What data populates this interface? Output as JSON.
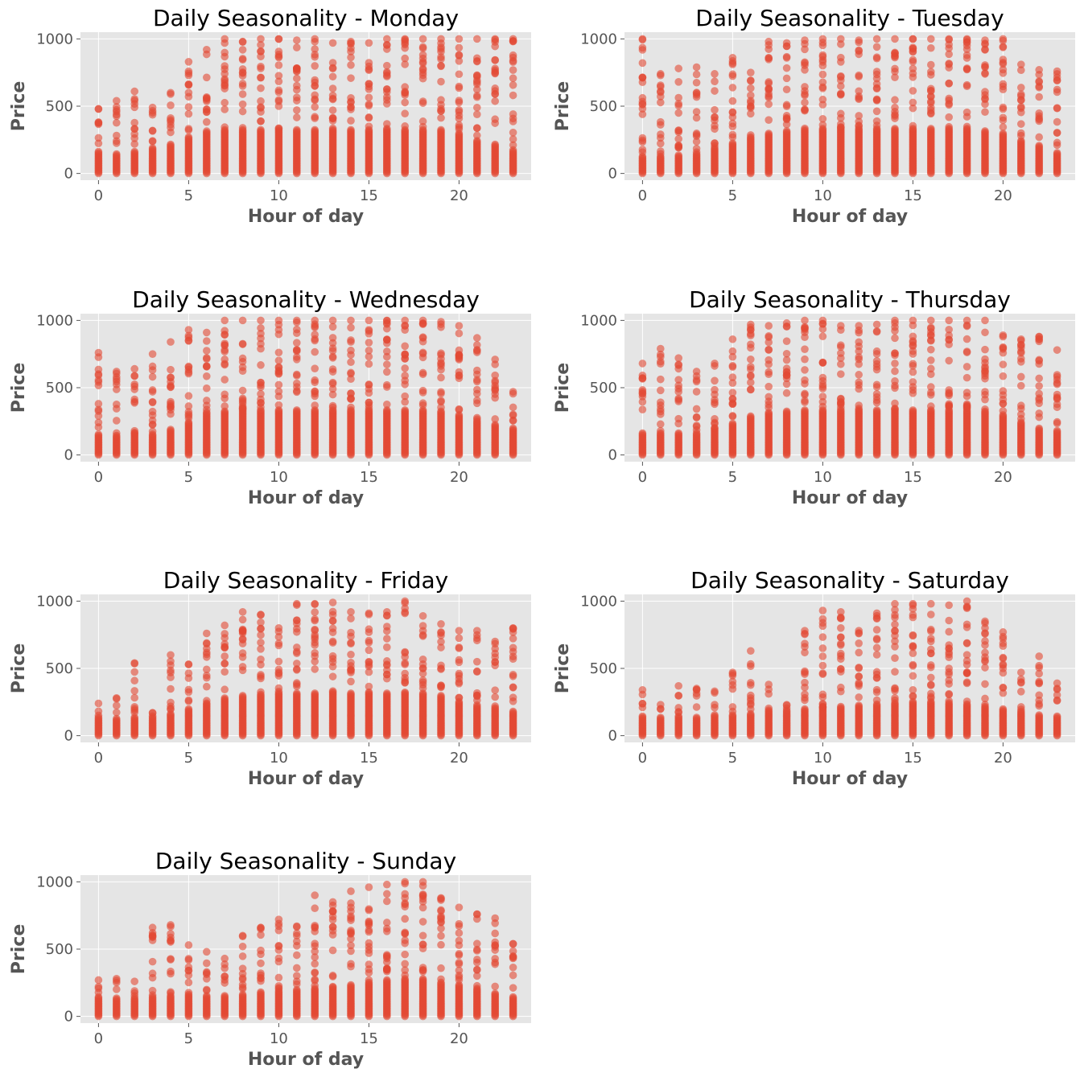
{
  "figure": {
    "background": "#ffffff",
    "plot_background": "#e5e5e5",
    "grid_color": "#ffffff",
    "marker_color": "#e24a33",
    "text_color": "#555555"
  },
  "chart_data": [
    {
      "type": "scatter",
      "title": "Daily Seasonality - Monday",
      "xlabel": "Hour of day",
      "ylabel": "Price",
      "xlim": [
        -1,
        24
      ],
      "ylim": [
        -50,
        1050
      ],
      "xticks": [
        0,
        5,
        10,
        15,
        20
      ],
      "yticks": [
        0,
        500,
        1000
      ],
      "grid": true,
      "marker_alpha": 0.6,
      "series": [
        {
          "x_hours": [
            0,
            1,
            2,
            3,
            4,
            5,
            6,
            7,
            8,
            9,
            10,
            11,
            12,
            13,
            14,
            15,
            16,
            17,
            18,
            19,
            20,
            21,
            22,
            23
          ],
          "max_price": [
            480,
            540,
            610,
            490,
            600,
            830,
            920,
            1000,
            980,
            1000,
            1000,
            990,
            1000,
            970,
            980,
            970,
            1000,
            1000,
            1000,
            1000,
            1000,
            1000,
            1000,
            1000
          ],
          "dense_upto": [
            170,
            150,
            170,
            190,
            220,
            270,
            300,
            330,
            330,
            330,
            330,
            330,
            330,
            330,
            330,
            330,
            340,
            330,
            330,
            330,
            300,
            250,
            220,
            170
          ]
        }
      ]
    },
    {
      "type": "scatter",
      "title": "Daily Seasonality - Tuesday",
      "xlabel": "Hour of day",
      "ylabel": "Price",
      "xlim": [
        -1,
        24
      ],
      "ylim": [
        -50,
        1050
      ],
      "xticks": [
        0,
        5,
        10,
        15,
        20
      ],
      "yticks": [
        0,
        500,
        1000
      ],
      "grid": true,
      "marker_alpha": 0.6,
      "series": [
        {
          "x_hours": [
            0,
            1,
            2,
            3,
            4,
            5,
            6,
            7,
            8,
            9,
            10,
            11,
            12,
            13,
            14,
            15,
            16,
            17,
            18,
            19,
            20,
            21,
            22,
            23
          ],
          "max_price": [
            1000,
            740,
            780,
            790,
            740,
            860,
            750,
            980,
            970,
            990,
            1000,
            1000,
            990,
            1000,
            1000,
            1000,
            1000,
            1000,
            1000,
            990,
            1000,
            810,
            770,
            760
          ],
          "dense_upto": [
            130,
            130,
            140,
            150,
            180,
            230,
            270,
            300,
            320,
            330,
            340,
            340,
            340,
            340,
            340,
            340,
            340,
            340,
            340,
            320,
            300,
            250,
            210,
            160
          ]
        }
      ]
    },
    {
      "type": "scatter",
      "title": "Daily Seasonality - Wednesday",
      "xlabel": "Hour of day",
      "ylabel": "Price",
      "xlim": [
        -1,
        24
      ],
      "ylim": [
        -50,
        1050
      ],
      "xticks": [
        0,
        5,
        10,
        15,
        20
      ],
      "yticks": [
        0,
        500,
        1000
      ],
      "grid": true,
      "marker_alpha": 0.6,
      "series": [
        {
          "x_hours": [
            0,
            1,
            2,
            3,
            4,
            5,
            6,
            7,
            8,
            9,
            10,
            11,
            12,
            13,
            14,
            15,
            16,
            17,
            18,
            19,
            20,
            21,
            22,
            23
          ],
          "max_price": [
            760,
            620,
            640,
            750,
            840,
            930,
            910,
            1000,
            1000,
            1000,
            1000,
            1000,
            1000,
            1000,
            1000,
            1000,
            1000,
            1000,
            1000,
            990,
            960,
            870,
            710,
            470
          ],
          "dense_upto": [
            160,
            150,
            160,
            160,
            190,
            250,
            300,
            330,
            340,
            340,
            340,
            340,
            340,
            340,
            340,
            340,
            340,
            340,
            340,
            330,
            300,
            260,
            230,
            200
          ]
        }
      ]
    },
    {
      "type": "scatter",
      "title": "Daily Seasonality - Thursday",
      "xlabel": "Hour of day",
      "ylabel": "Price",
      "xlim": [
        -1,
        24
      ],
      "ylim": [
        -50,
        1050
      ],
      "xticks": [
        0,
        5,
        10,
        15,
        20
      ],
      "yticks": [
        0,
        500,
        1000
      ],
      "grid": true,
      "marker_alpha": 0.6,
      "series": [
        {
          "x_hours": [
            0,
            1,
            2,
            3,
            4,
            5,
            6,
            7,
            8,
            9,
            10,
            11,
            12,
            13,
            14,
            15,
            16,
            17,
            18,
            19,
            20,
            21,
            22,
            23
          ],
          "max_price": [
            680,
            790,
            720,
            620,
            680,
            860,
            970,
            960,
            980,
            1000,
            1000,
            960,
            960,
            970,
            1000,
            1000,
            1000,
            1000,
            1000,
            1000,
            890,
            860,
            880,
            780
          ],
          "dense_upto": [
            170,
            160,
            170,
            170,
            200,
            240,
            290,
            320,
            330,
            340,
            340,
            340,
            340,
            340,
            340,
            340,
            340,
            340,
            340,
            330,
            300,
            250,
            200,
            180
          ]
        }
      ]
    },
    {
      "type": "scatter",
      "title": "Daily Seasonality - Friday",
      "xlabel": "Hour of day",
      "ylabel": "Price",
      "xlim": [
        -1,
        24
      ],
      "ylim": [
        -50,
        1050
      ],
      "xticks": [
        0,
        5,
        10,
        15,
        20
      ],
      "yticks": [
        0,
        500,
        1000
      ],
      "grid": true,
      "marker_alpha": 0.6,
      "series": [
        {
          "x_hours": [
            0,
            1,
            2,
            3,
            4,
            5,
            6,
            7,
            8,
            9,
            10,
            11,
            12,
            13,
            14,
            15,
            16,
            17,
            18,
            19,
            20,
            21,
            22,
            23
          ],
          "max_price": [
            240,
            280,
            540,
            170,
            600,
            530,
            760,
            820,
            920,
            900,
            800,
            980,
            980,
            990,
            920,
            910,
            920,
            1000,
            890,
            830,
            780,
            780,
            700,
            800
          ],
          "dense_upto": [
            140,
            130,
            140,
            140,
            170,
            200,
            240,
            270,
            300,
            310,
            320,
            320,
            320,
            320,
            320,
            320,
            320,
            320,
            320,
            300,
            260,
            220,
            200,
            180
          ]
        }
      ]
    },
    {
      "type": "scatter",
      "title": "Daily Seasonality - Saturday",
      "xlabel": "Hour of day",
      "ylabel": "Price",
      "xlim": [
        -1,
        24
      ],
      "ylim": [
        -50,
        1050
      ],
      "xticks": [
        0,
        5,
        10,
        15,
        20
      ],
      "yticks": [
        0,
        500,
        1000
      ],
      "grid": true,
      "marker_alpha": 0.6,
      "series": [
        {
          "x_hours": [
            0,
            1,
            2,
            3,
            4,
            5,
            6,
            7,
            8,
            9,
            10,
            11,
            12,
            13,
            14,
            15,
            16,
            17,
            18,
            19,
            20,
            21,
            22,
            23
          ],
          "max_price": [
            340,
            230,
            370,
            350,
            330,
            470,
            630,
            380,
            230,
            780,
            930,
            920,
            780,
            910,
            980,
            980,
            980,
            970,
            1000,
            850,
            770,
            470,
            590,
            390
          ],
          "dense_upto": [
            150,
            140,
            150,
            140,
            150,
            160,
            170,
            180,
            190,
            200,
            210,
            220,
            230,
            240,
            250,
            260,
            260,
            250,
            240,
            220,
            200,
            180,
            160,
            150
          ]
        }
      ]
    },
    {
      "type": "scatter",
      "title": "Daily Seasonality - Sunday",
      "xlabel": "Hour of day",
      "ylabel": "Price",
      "xlim": [
        -1,
        24
      ],
      "ylim": [
        -50,
        1050
      ],
      "xticks": [
        0,
        5,
        10,
        15,
        20
      ],
      "yticks": [
        0,
        500,
        1000
      ],
      "grid": true,
      "marker_alpha": 0.6,
      "series": [
        {
          "x_hours": [
            0,
            1,
            2,
            3,
            4,
            5,
            6,
            7,
            8,
            9,
            10,
            11,
            12,
            13,
            14,
            15,
            16,
            17,
            18,
            19,
            20,
            21,
            22,
            23
          ],
          "max_price": [
            270,
            280,
            260,
            660,
            680,
            530,
            480,
            430,
            600,
            660,
            720,
            670,
            900,
            850,
            930,
            960,
            980,
            1000,
            1000,
            880,
            810,
            760,
            730,
            540
          ],
          "dense_upto": [
            150,
            140,
            140,
            150,
            160,
            170,
            160,
            160,
            170,
            180,
            190,
            200,
            210,
            220,
            240,
            260,
            270,
            280,
            280,
            260,
            240,
            200,
            170,
            150
          ]
        }
      ]
    }
  ]
}
